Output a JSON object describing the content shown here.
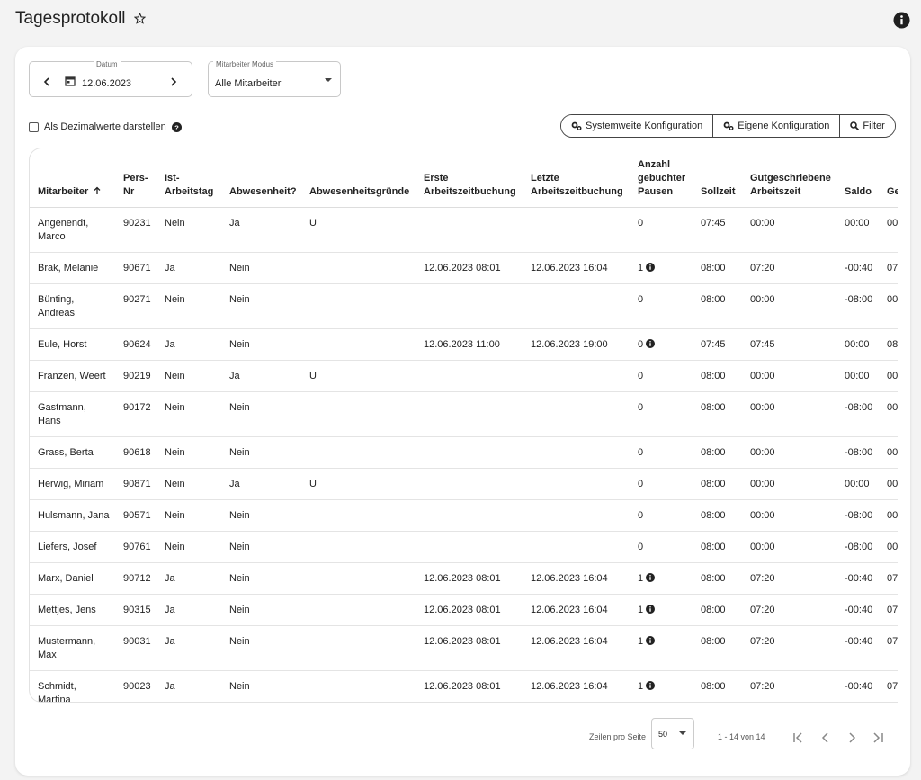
{
  "header": {
    "title": "Tagesprotokoll"
  },
  "controls": {
    "date_label": "Datum",
    "date": "12.06.2023",
    "mode_label": "Mitarbeiter Modus",
    "mode": "Alle Mitarbeiter",
    "decimal_checkbox": "Als Dezimalwerte darstellen",
    "buttons": [
      "Systemweite Konfiguration",
      "Eigene Konfiguration",
      "Filter"
    ]
  },
  "table": {
    "columns": [
      "Mitarbeiter",
      "Pers-Nr",
      "Ist-Arbeitstag",
      "Abwesenheit?",
      "Abwesenheitsgründe",
      "Erste Arbeitszeitbuchung",
      "Letzte Arbeitszeitbuchung",
      "Anzahl gebuchter Pausen",
      "Sollzeit",
      "Gutgeschriebene Arbeitszeit",
      "Saldo",
      "Ge Ar"
    ],
    "rows": [
      [
        "Angenendt, Marco",
        "90231",
        "Nein",
        "Ja",
        "U",
        null,
        null,
        "0",
        "07:45",
        "00:00",
        "00:00",
        "00"
      ],
      [
        "Brak, Melanie",
        "90671",
        "Ja",
        "Nein",
        null,
        "12.06.2023 08:01",
        "12.06.2023 16:04",
        "1",
        "08:00",
        "07:20",
        "-00:40",
        "07"
      ],
      [
        "Bünting, Andreas",
        "90271",
        "Nein",
        "Nein",
        null,
        null,
        null,
        "0",
        "08:00",
        "00:00",
        "-08:00",
        "00"
      ],
      [
        "Eule, Horst",
        "90624",
        "Ja",
        "Nein",
        null,
        "12.06.2023 11:00",
        "12.06.2023 19:00",
        "0",
        "07:45",
        "07:45",
        "00:00",
        "08"
      ],
      [
        "Franzen, Weert",
        "90219",
        "Nein",
        "Ja",
        "U",
        null,
        null,
        "0",
        "08:00",
        "00:00",
        "00:00",
        "00"
      ],
      [
        "Gastmann, Hans",
        "90172",
        "Nein",
        "Nein",
        null,
        null,
        null,
        "0",
        "08:00",
        "00:00",
        "-08:00",
        "00"
      ],
      [
        "Grass, Berta",
        "90618",
        "Nein",
        "Nein",
        null,
        null,
        null,
        "0",
        "08:00",
        "00:00",
        "-08:00",
        "00"
      ],
      [
        "Herwig, Miriam",
        "90871",
        "Nein",
        "Ja",
        "U",
        null,
        null,
        "0",
        "08:00",
        "00:00",
        "00:00",
        "00"
      ],
      [
        "Hulsmann, Jana",
        "90571",
        "Nein",
        "Nein",
        null,
        null,
        null,
        "0",
        "08:00",
        "00:00",
        "-08:00",
        "00"
      ],
      [
        "Liefers, Josef",
        "90761",
        "Nein",
        "Nein",
        null,
        null,
        null,
        "0",
        "08:00",
        "00:00",
        "-08:00",
        "00"
      ],
      [
        "Marx, Daniel",
        "90712",
        "Ja",
        "Nein",
        null,
        "12.06.2023 08:01",
        "12.06.2023 16:04",
        "1",
        "08:00",
        "07:20",
        "-00:40",
        "07"
      ],
      [
        "Mettjes, Jens",
        "90315",
        "Ja",
        "Nein",
        null,
        "12.06.2023 08:01",
        "12.06.2023 16:04",
        "1",
        "08:00",
        "07:20",
        "-00:40",
        "07"
      ],
      [
        "Mustermann, Max",
        "90031",
        "Ja",
        "Nein",
        null,
        "12.06.2023 08:01",
        "12.06.2023 16:04",
        "1",
        "08:00",
        "07:20",
        "-00:40",
        "07"
      ],
      [
        "Schmidt, Martina",
        "90023",
        "Ja",
        "Nein",
        null,
        "12.06.2023 08:01",
        "12.06.2023 16:04",
        "1",
        "08:00",
        "07:20",
        "-00:40",
        "07"
      ]
    ],
    "pause_info": [
      false,
      true,
      false,
      true,
      false,
      false,
      false,
      false,
      false,
      false,
      true,
      true,
      true,
      true
    ]
  },
  "pagination": {
    "rows_per_page_label": "Zeilen pro Seite",
    "rows_per_page": 50,
    "range": "1 - 14 von 14"
  }
}
